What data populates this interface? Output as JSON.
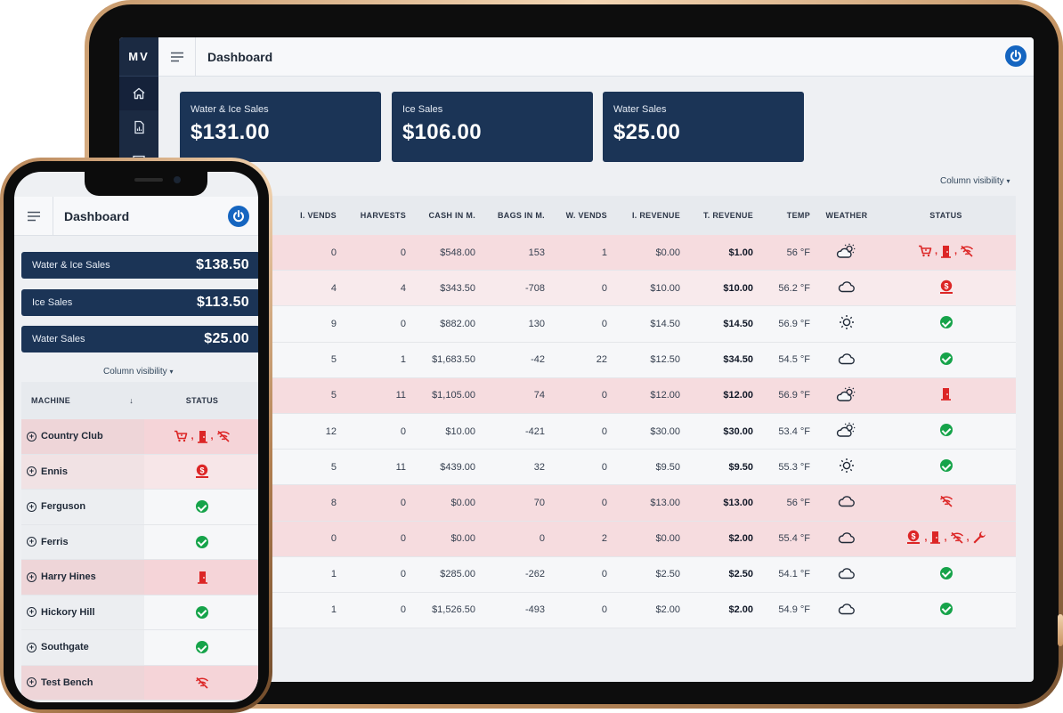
{
  "tablet": {
    "brand": "MV",
    "title": "Dashboard",
    "cards": [
      {
        "label": "Water & Ice Sales",
        "value": "$131.00"
      },
      {
        "label": "Ice Sales",
        "value": "$106.00"
      },
      {
        "label": "Water Sales",
        "value": "$25.00"
      }
    ],
    "column_visibility": "Column visibility",
    "columns": [
      "I. VENDS",
      "HARVESTS",
      "CASH IN M.",
      "BAGS IN M.",
      "W. VENDS",
      "I. REVENUE",
      "T. REVENUE",
      "TEMP",
      "WEATHER",
      "STATUS"
    ],
    "rows": [
      {
        "ivends": "0",
        "harvests": "0",
        "cash": "$548.00",
        "bags": "153",
        "wvends": "1",
        "irev": "$0.00",
        "trev": "$1.00",
        "temp": "56 °F",
        "weather": "partly-cloudy-icon",
        "status": [
          "cart-alert-icon",
          "door-alert-icon",
          "wifi-off-icon"
        ],
        "alert": "alert"
      },
      {
        "ivends": "4",
        "harvests": "4",
        "cash": "$343.50",
        "bags": "-708",
        "wvends": "0",
        "irev": "$10.00",
        "trev": "$10.00",
        "temp": "56.2 °F",
        "weather": "cloud-icon",
        "status": [
          "cash-alert-icon"
        ],
        "alert": "alert2"
      },
      {
        "ivends": "9",
        "harvests": "0",
        "cash": "$882.00",
        "bags": "130",
        "wvends": "0",
        "irev": "$14.50",
        "trev": "$14.50",
        "temp": "56.9 °F",
        "weather": "sun-icon",
        "status": [
          "ok-icon"
        ],
        "alert": ""
      },
      {
        "ivends": "5",
        "harvests": "1",
        "cash": "$1,683.50",
        "bags": "-42",
        "wvends": "22",
        "irev": "$12.50",
        "trev": "$34.50",
        "temp": "54.5 °F",
        "weather": "cloud-icon",
        "status": [
          "ok-icon"
        ],
        "alert": ""
      },
      {
        "ivends": "5",
        "harvests": "11",
        "cash": "$1,105.00",
        "bags": "74",
        "wvends": "0",
        "irev": "$12.00",
        "trev": "$12.00",
        "temp": "56.9 °F",
        "weather": "partly-cloudy-icon",
        "status": [
          "door-alert-icon"
        ],
        "alert": "alert"
      },
      {
        "ivends": "12",
        "harvests": "0",
        "cash": "$10.00",
        "bags": "-421",
        "wvends": "0",
        "irev": "$30.00",
        "trev": "$30.00",
        "temp": "53.4 °F",
        "weather": "partly-cloudy-icon",
        "status": [
          "ok-icon"
        ],
        "alert": ""
      },
      {
        "ivends": "5",
        "harvests": "11",
        "cash": "$439.00",
        "bags": "32",
        "wvends": "0",
        "irev": "$9.50",
        "trev": "$9.50",
        "temp": "55.3 °F",
        "weather": "sun-icon",
        "status": [
          "ok-icon"
        ],
        "alert": ""
      },
      {
        "ivends": "8",
        "harvests": "0",
        "cash": "$0.00",
        "bags": "70",
        "wvends": "0",
        "irev": "$13.00",
        "trev": "$13.00",
        "temp": "56 °F",
        "weather": "cloud-icon",
        "status": [
          "wifi-off-icon"
        ],
        "alert": "alert"
      },
      {
        "ivends": "0",
        "harvests": "0",
        "cash": "$0.00",
        "bags": "0",
        "wvends": "2",
        "irev": "$0.00",
        "trev": "$2.00",
        "temp": "55.4 °F",
        "weather": "cloud-icon",
        "status": [
          "cash-alert-icon",
          "door-alert-icon",
          "wifi-off-icon",
          "wrench-icon"
        ],
        "alert": "alert",
        "partial": "n"
      },
      {
        "ivends": "1",
        "harvests": "0",
        "cash": "$285.00",
        "bags": "-262",
        "wvends": "0",
        "irev": "$2.50",
        "trev": "$2.50",
        "temp": "54.1 °F",
        "weather": "cloud-icon",
        "status": [
          "ok-icon"
        ],
        "alert": ""
      },
      {
        "ivends": "1",
        "harvests": "0",
        "cash": "$1,526.50",
        "bags": "-493",
        "wvends": "0",
        "irev": "$2.00",
        "trev": "$2.00",
        "temp": "54.9 °F",
        "weather": "cloud-icon",
        "status": [
          "ok-icon"
        ],
        "alert": ""
      }
    ]
  },
  "phone": {
    "title": "Dashboard",
    "cards": [
      {
        "label": "Water & Ice Sales",
        "value": "$138.50"
      },
      {
        "label": "Ice Sales",
        "value": "$113.50"
      },
      {
        "label": "Water Sales",
        "value": "$25.00"
      }
    ],
    "column_visibility": "Column visibility",
    "columns": [
      "MACHINE",
      "STATUS"
    ],
    "rows": [
      {
        "machine": "Country Club",
        "status": [
          "cart-alert-icon",
          "door-alert-icon",
          "wifi-off-icon"
        ],
        "alert": "alert"
      },
      {
        "machine": "Ennis",
        "status": [
          "cash-alert-icon"
        ],
        "alert": "alert2"
      },
      {
        "machine": "Ferguson",
        "status": [
          "ok-icon"
        ],
        "alert": ""
      },
      {
        "machine": "Ferris",
        "status": [
          "ok-icon"
        ],
        "alert": ""
      },
      {
        "machine": "Harry Hines",
        "status": [
          "door-alert-icon"
        ],
        "alert": "alert"
      },
      {
        "machine": "Hickory Hill",
        "status": [
          "ok-icon"
        ],
        "alert": ""
      },
      {
        "machine": "Southgate",
        "status": [
          "ok-icon"
        ],
        "alert": ""
      },
      {
        "machine": "Test Bench",
        "status": [
          "wifi-off-icon"
        ],
        "alert": "alert"
      }
    ]
  },
  "colors": {
    "navy": "#1b3456",
    "sidebar": "#1b2a42",
    "alert_red": "#dc2626",
    "ok_green": "#16a34a",
    "power_blue": "#1565c0"
  }
}
